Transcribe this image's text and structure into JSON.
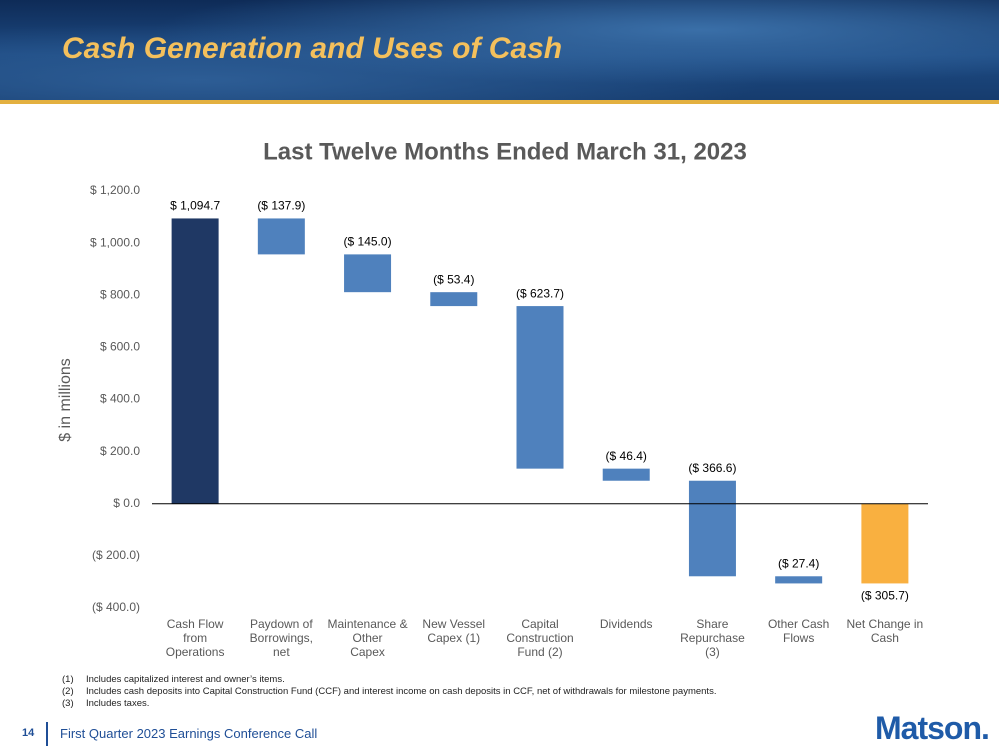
{
  "header": {
    "title": "Cash Generation and Uses of Cash"
  },
  "chart_data": {
    "type": "waterfall",
    "title": "Last Twelve Months Ended March 31, 2023",
    "y_label": "$ in millions",
    "categories": [
      "Cash Flow\nfrom\nOperations",
      "Paydown of\nBorrowings,\nnet",
      "Maintenance &\nOther\nCapex",
      "New Vessel\nCapex (1)",
      "Capital\nConstruction\nFund (2)",
      "Dividends",
      "Share\nRepurchase\n(3)",
      "Other Cash\nFlows",
      "Net Change in\nCash"
    ],
    "values": [
      1094.7,
      -137.9,
      -145.0,
      -53.4,
      -623.7,
      -46.4,
      -366.6,
      -27.4,
      -305.7
    ],
    "value_labels": [
      "$ 1,094.7",
      "($ 137.9)",
      "($ 145.0)",
      "($ 53.4)",
      "($ 623.7)",
      "($ 46.4)",
      "($ 366.6)",
      "($ 27.4)",
      "($ 305.7)"
    ],
    "colors": [
      "#1f3864",
      "#4f81bd",
      "#4f81bd",
      "#4f81bd",
      "#4f81bd",
      "#4f81bd",
      "#4f81bd",
      "#4f81bd",
      "#f9b040"
    ],
    "last_is_total": true,
    "ylim": [
      -400,
      1200
    ],
    "yticks": [
      {
        "value": -400,
        "label": "($ 400.0)"
      },
      {
        "value": -200,
        "label": "($ 200.0)"
      },
      {
        "value": 0,
        "label": "$ 0.0"
      },
      {
        "value": 200,
        "label": "$ 200.0"
      },
      {
        "value": 400,
        "label": "$ 400.0"
      },
      {
        "value": 600,
        "label": "$ 600.0"
      },
      {
        "value": 800,
        "label": "$ 800.0"
      },
      {
        "value": 1000,
        "label": "$ 1,000.0"
      },
      {
        "value": 1200,
        "label": "$ 1,200.0"
      }
    ]
  },
  "footnotes": [
    {
      "marker": "(1)",
      "text": "Includes capitalized interest and owner’s items."
    },
    {
      "marker": "(2)",
      "text": "Includes cash deposits into Capital Construction Fund (CCF) and interest income on cash deposits in CCF, net of withdrawals for milestone payments."
    },
    {
      "marker": "(3)",
      "text": "Includes taxes."
    }
  ],
  "footer": {
    "page_number": "14",
    "text": "First Quarter 2023 Earnings Conference Call",
    "logo": "Matson."
  }
}
